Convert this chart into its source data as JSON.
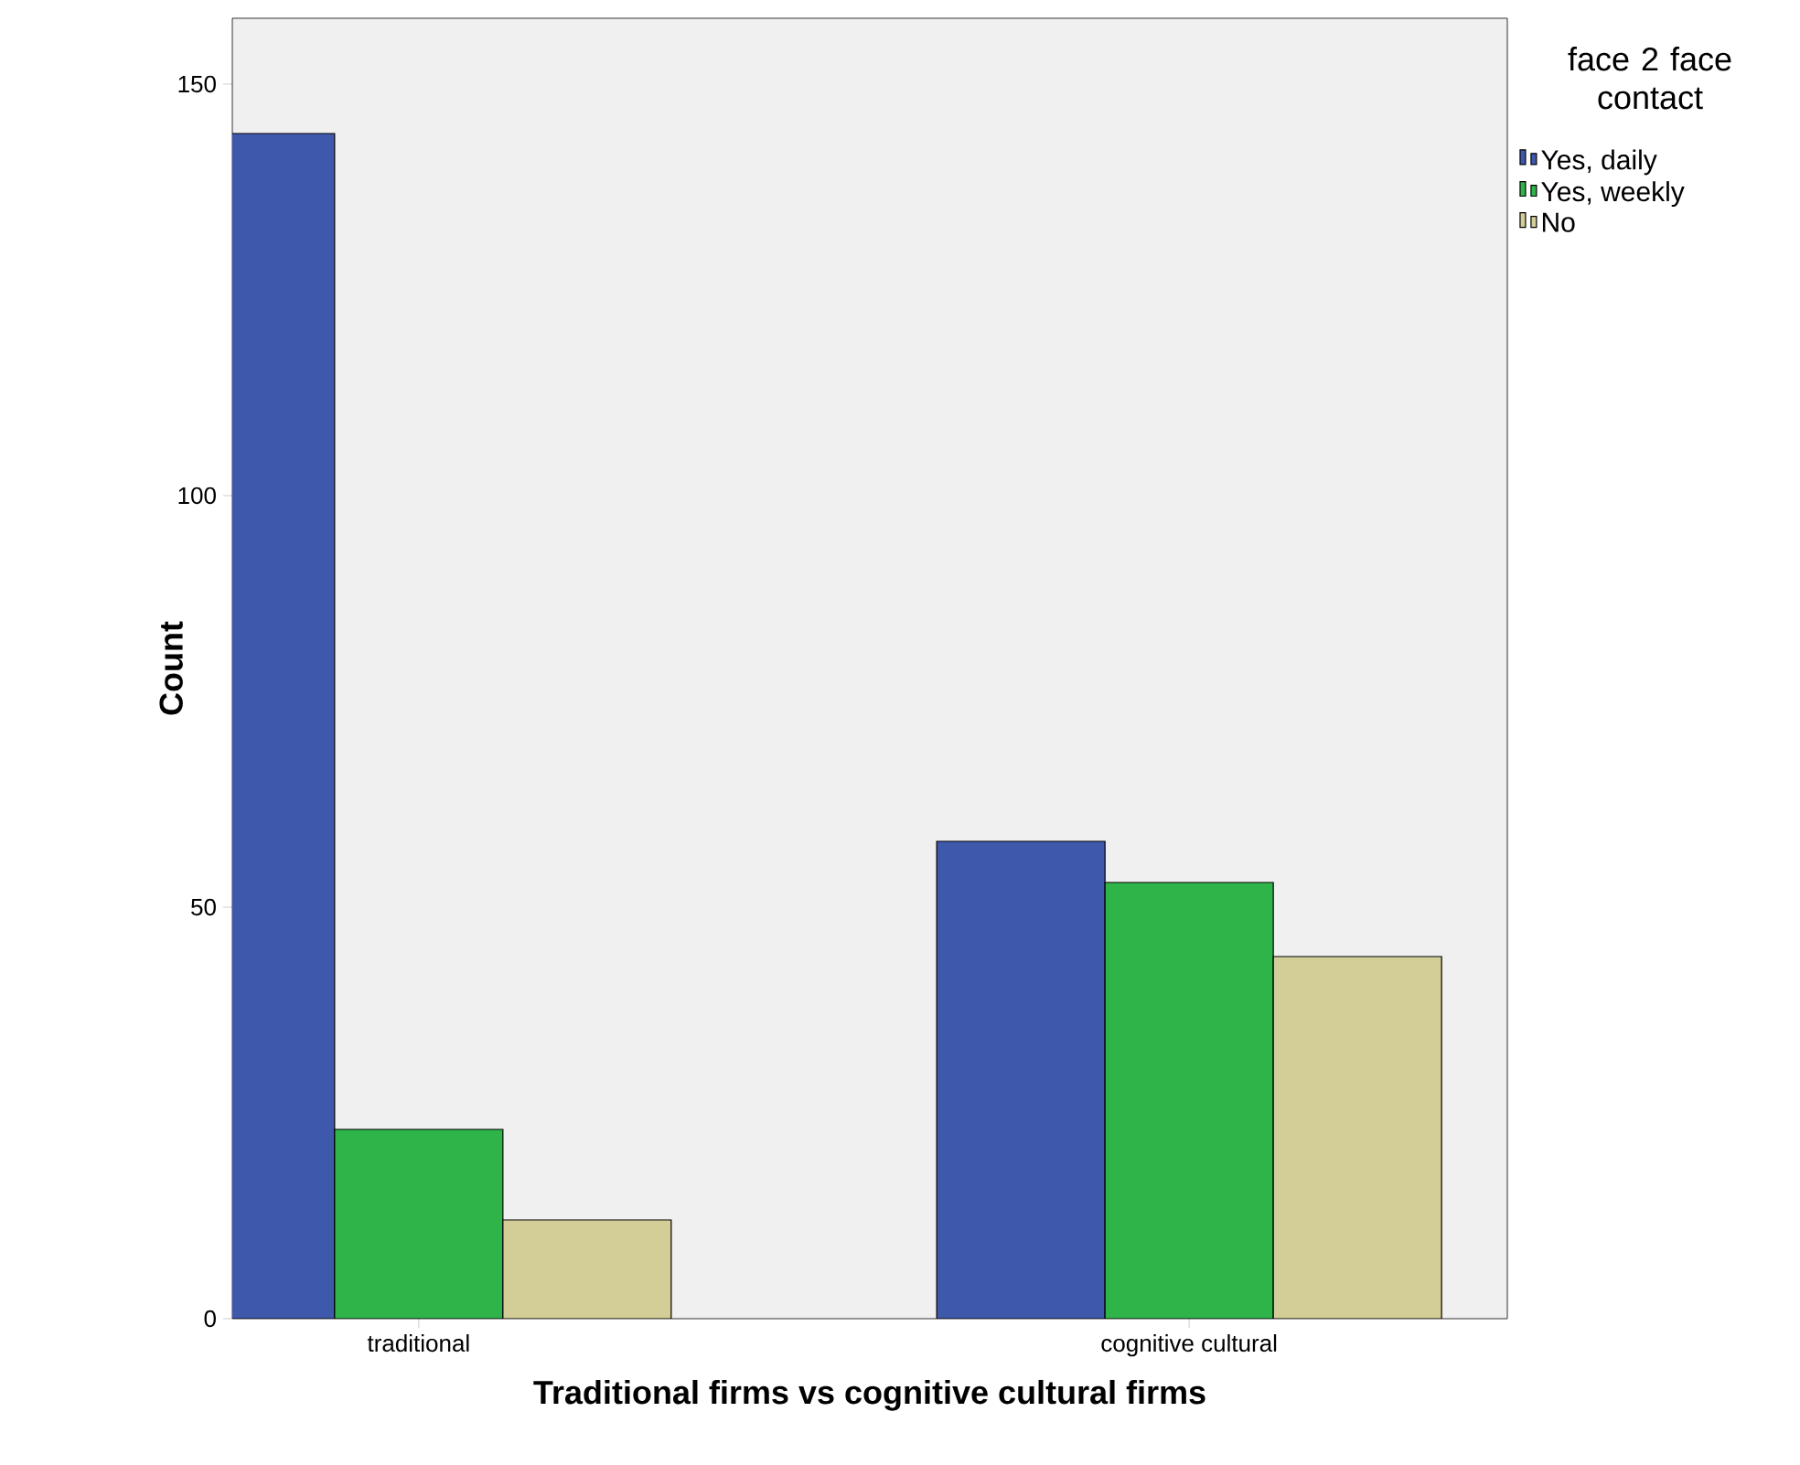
{
  "chart_data": {
    "type": "bar",
    "xlabel": "Traditional firms vs cognitive cultural firms",
    "ylabel": "Count",
    "legend_title": "face 2 face contact",
    "legend": "top right",
    "categories": [
      "traditional",
      "cognitive cultural"
    ],
    "series": [
      {
        "name": "Yes, daily",
        "color": "#3e58ac",
        "values": [
          144,
          58
        ]
      },
      {
        "name": "Yes, weekly",
        "color": "#2fb44a",
        "values": [
          23,
          53
        ]
      },
      {
        "name": "No",
        "color": "#d3ce97",
        "values": [
          12,
          44
        ]
      }
    ],
    "ylim": [
      0,
      158
    ],
    "yticks": [
      0,
      50,
      100,
      150
    ],
    "grid": false
  }
}
